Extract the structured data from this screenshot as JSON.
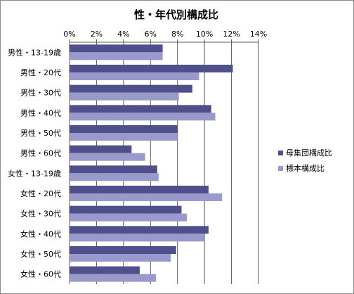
{
  "colors": {
    "series1": "#4f4f8c",
    "series2": "#9999cc",
    "grid": "#5a5a5a"
  },
  "chart_data": {
    "type": "bar",
    "orientation": "horizontal",
    "title": "性・年代別構成比",
    "categories": [
      "男性・13-19歳",
      "男性・20代",
      "男性・30代",
      "男性・40代",
      "男性・50代",
      "男性・60代",
      "女性・13-19歳",
      "女性・20代",
      "女性・30代",
      "女性・40代",
      "女性・50代",
      "女性・60代"
    ],
    "series": [
      {
        "name": "母集団構成比",
        "values": [
          6.9,
          12.1,
          9.1,
          10.5,
          8.0,
          4.6,
          6.5,
          10.3,
          8.3,
          10.3,
          7.9,
          5.2
        ]
      },
      {
        "name": "標本構成比",
        "values": [
          6.9,
          9.6,
          8.1,
          10.8,
          8.0,
          5.6,
          6.6,
          11.3,
          8.7,
          10.0,
          7.5,
          6.4
        ]
      }
    ],
    "xlim": [
      0,
      14
    ],
    "x_ticks": [
      "0%",
      "2%",
      "4%",
      "6%",
      "8%",
      "10%",
      "12%",
      "14%"
    ],
    "x_axis_position": "top",
    "grid": true,
    "legend_position": "right"
  }
}
